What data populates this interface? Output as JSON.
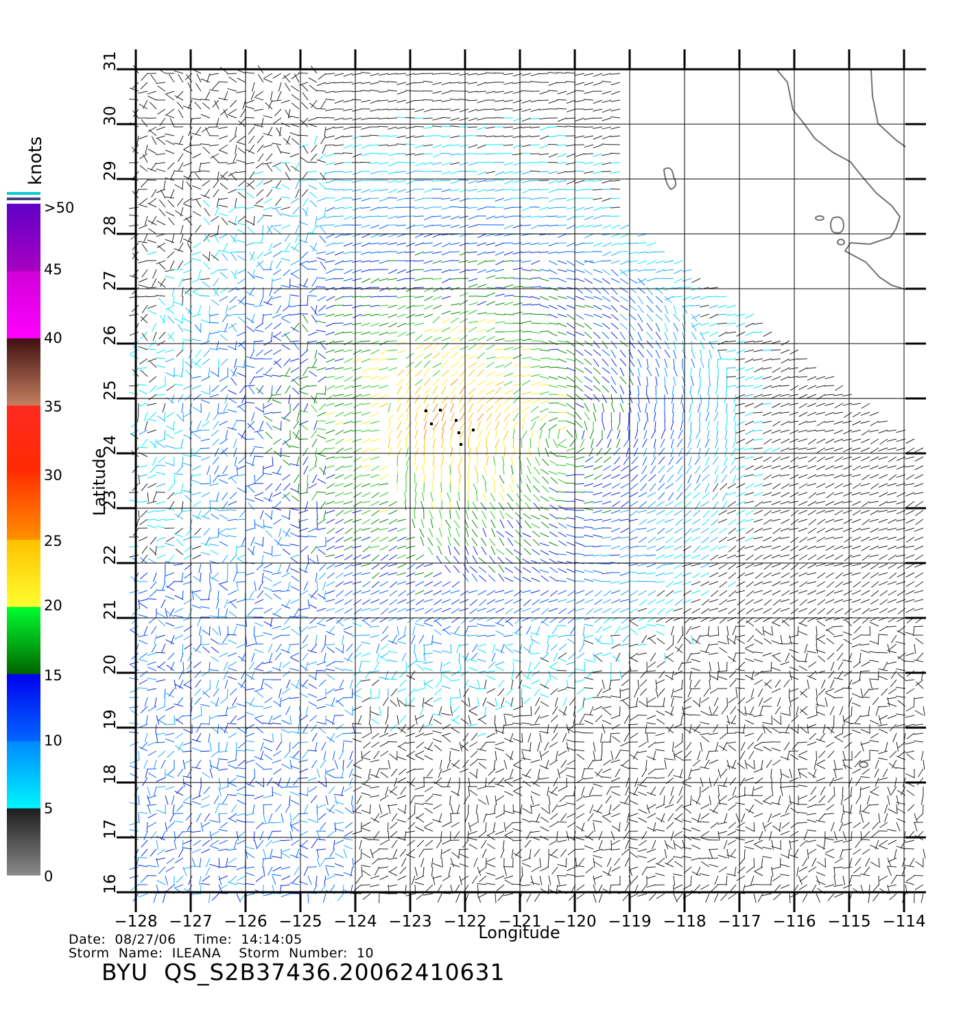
{
  "colorbar": {
    "unit_label": "knots",
    "labels": [
      ">50",
      "45",
      "40",
      "35",
      "30",
      "25",
      "20",
      "15",
      "10",
      "5",
      "0"
    ],
    "bands": [
      {
        "from": 0,
        "to": 5,
        "colors": [
          "#8a8a8a",
          "#1c1c1c"
        ]
      },
      {
        "from": 5,
        "to": 10,
        "colors": [
          "#00f6ff",
          "#0088ff"
        ]
      },
      {
        "from": 10,
        "to": 15,
        "colors": [
          "#0066ff",
          "#0000ee"
        ]
      },
      {
        "from": 15,
        "to": 20,
        "colors": [
          "#006400",
          "#00ff30"
        ]
      },
      {
        "from": 20,
        "to": 25,
        "colors": [
          "#ffff30",
          "#ffc000"
        ]
      },
      {
        "from": 25,
        "to": 30,
        "colors": [
          "#ff9000",
          "#ff3000"
        ]
      },
      {
        "from": 30,
        "to": 35,
        "colors": [
          "#ff2a00",
          "#ff2a20"
        ]
      },
      {
        "from": 35,
        "to": 40,
        "colors": [
          "#c48060",
          "#401010"
        ]
      },
      {
        "from": 40,
        "to": 45,
        "colors": [
          "#ff00ff",
          "#d000d8"
        ]
      },
      {
        "from": 45,
        "to": 50,
        "colors": [
          "#a800c0",
          "#6000c8"
        ]
      }
    ],
    "top_stripe_colors": [
      "#00c8d0",
      "#ffffff",
      "#404080"
    ]
  },
  "map": {
    "lon_ticks": [
      "−128",
      "−127",
      "−126",
      "−125",
      "−124",
      "−123",
      "−122",
      "−121",
      "−120",
      "−119",
      "−118",
      "−117",
      "−116",
      "−115",
      "−114"
    ],
    "lat_ticks": [
      "16",
      "17",
      "18",
      "19",
      "20",
      "21",
      "22",
      "23",
      "24",
      "25",
      "26",
      "27",
      "28",
      "29",
      "30",
      "31"
    ],
    "lon_range": [
      -128,
      -114
    ],
    "lat_range": [
      16,
      31
    ],
    "xlabel": "Longitude",
    "ylabel": "Latitude",
    "grid": true,
    "coastline_color": "#707070",
    "storm_center_marks": "black dots near 24.5N 122W"
  },
  "footer": {
    "line1": "Date:  08/27/06    Time:  14:14:05",
    "line2": "Storm  Name:  ILEANA    Storm  Number:  10",
    "title": "BYU  QS_S2B37436.20062410631"
  }
}
